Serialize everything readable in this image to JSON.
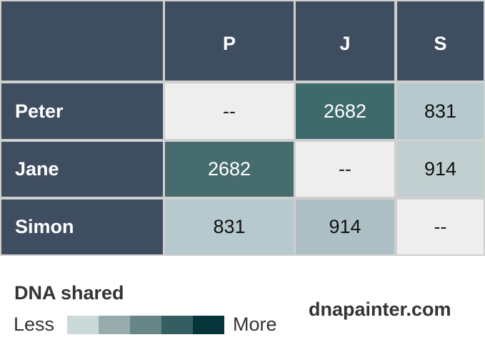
{
  "chart_data": {
    "type": "table",
    "columns": [
      "P",
      "J",
      "S"
    ],
    "rows": [
      {
        "name": "Peter",
        "values": [
          "--",
          "2682",
          "831"
        ]
      },
      {
        "name": "Jane",
        "values": [
          "2682",
          "--",
          "914"
        ]
      },
      {
        "name": "Simon",
        "values": [
          "831",
          "914",
          "--"
        ]
      }
    ],
    "cell_colors": [
      [
        "#eeeeee",
        "#3e6a6b",
        "#b5c9ce"
      ],
      [
        "#476c6e",
        "#eeeeee",
        "#c2cfd0"
      ],
      [
        "#b5c9ce",
        "#acc0c6",
        "#eeeeee"
      ]
    ],
    "cell_text_colors": [
      [
        "#222222",
        "#ffffff",
        "#111111"
      ],
      [
        "#ffffff",
        "#222222",
        "#111111"
      ],
      [
        "#111111",
        "#111111",
        "#222222"
      ]
    ],
    "header_color": "#3f4d61"
  },
  "legend": {
    "title": "DNA shared",
    "less": "Less",
    "more": "More",
    "scale_colors": [
      "#ccd9d9",
      "#98acad",
      "#678687",
      "#355e62",
      "#05353b"
    ]
  },
  "site": "dnapainter.com"
}
